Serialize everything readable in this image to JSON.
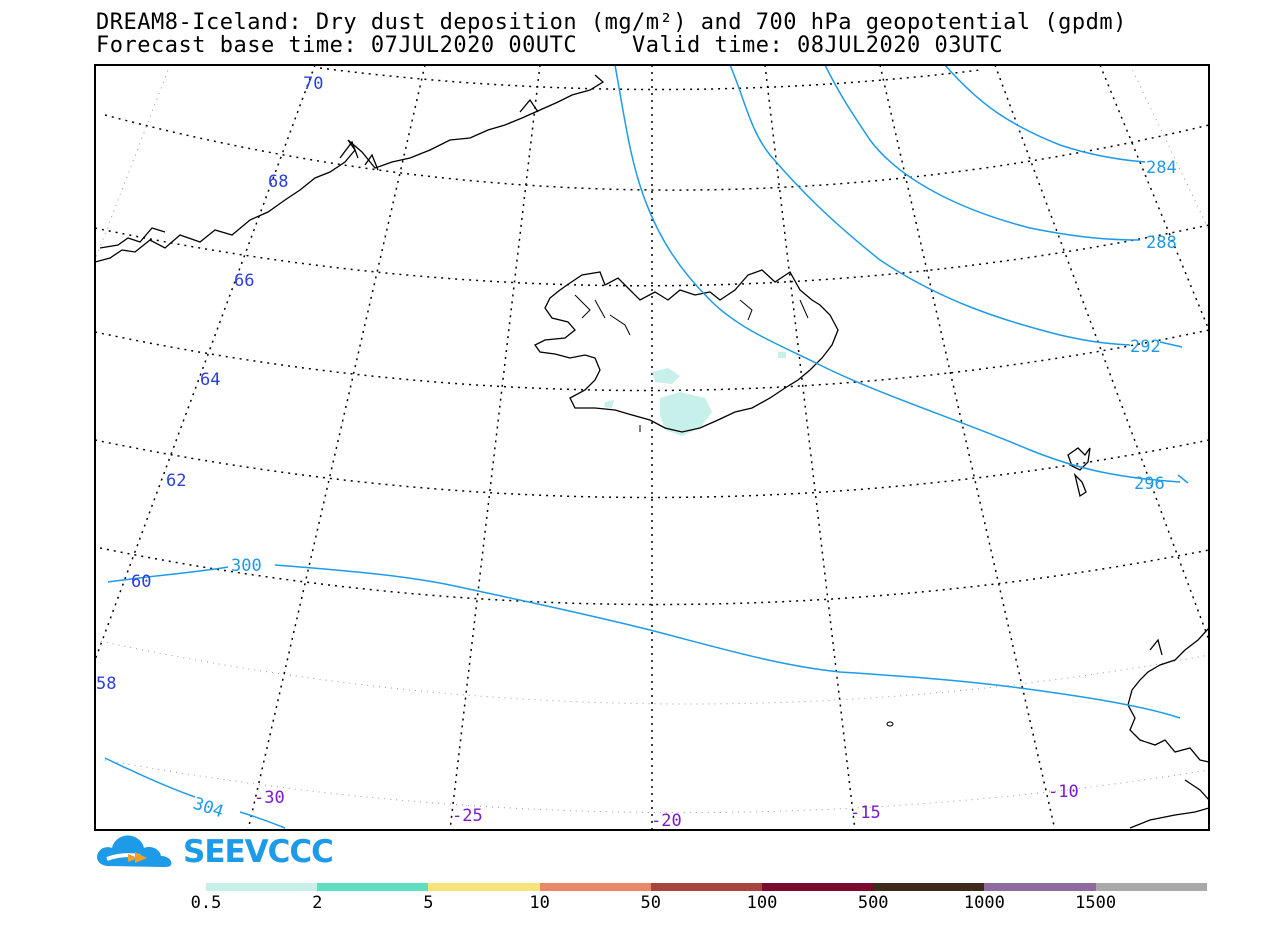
{
  "title_line1": "DREAM8-Iceland: Dry dust deposition (mg/m²) and 700 hPa geopotential (gpdm)",
  "title_line2": "Forecast base time: 07JUL2020 00UTC    Valid time: 08JUL2020 03UTC",
  "brand": "SEEVCCC",
  "lat_labels": [
    "70",
    "68",
    "66",
    "64",
    "62",
    "60",
    "58"
  ],
  "lon_labels": [
    "-30",
    "-25",
    "-20",
    "-15",
    "-10"
  ],
  "contour_labels": [
    "284",
    "288",
    "292",
    "296",
    "300",
    "304"
  ],
  "colorbar": {
    "colors": [
      "#c8f0ea",
      "#5fdfc0",
      "#f9e47a",
      "#e8896a",
      "#a8443e",
      "#7a0a2e",
      "#3d2a1a",
      "#8e6a9e",
      "#a9a9a9"
    ],
    "labels": [
      "0.5",
      "2",
      "5",
      "10",
      "50",
      "100",
      "500",
      "1000",
      "1500"
    ]
  },
  "colors": {
    "contour": "#1e9be8",
    "lat_label": "#2a3fe0",
    "lon_label": "#7a1ad0",
    "dust": "#c8f0ea"
  }
}
